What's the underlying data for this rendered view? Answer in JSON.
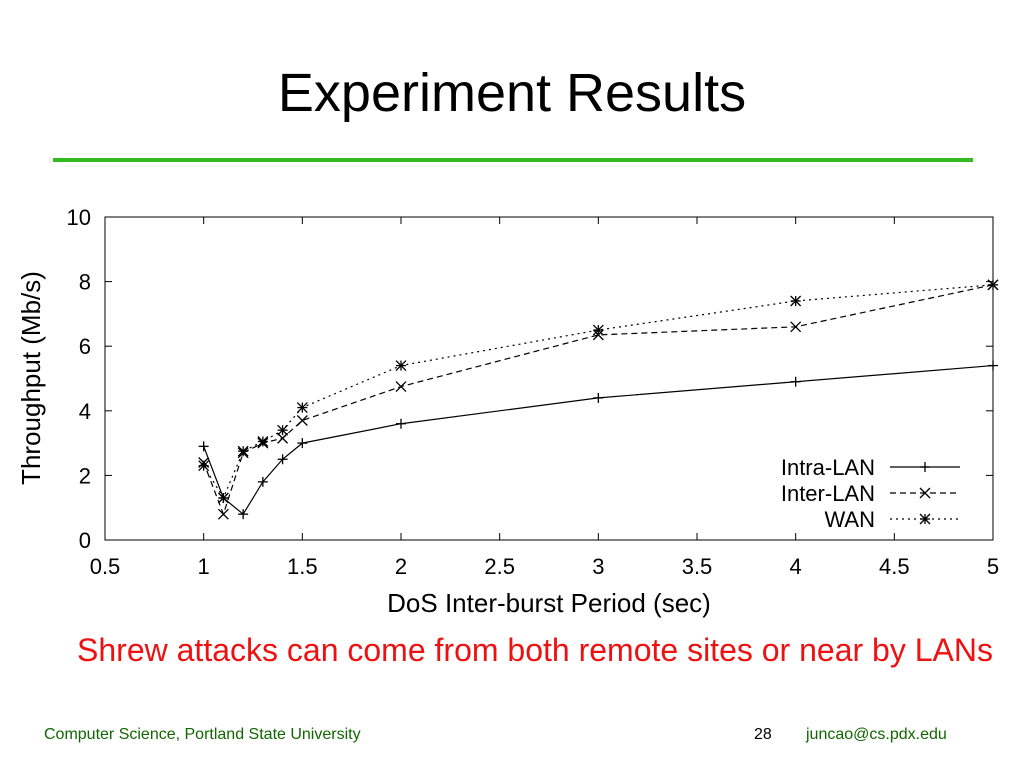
{
  "slide": {
    "title": "Experiment Results",
    "caption": "Shrew attacks can come from both remote sites or near by LANs",
    "footer_left": "Computer Science, Portland State University",
    "page_number": "28",
    "footer_email": "juncao@cs.pdx.edu",
    "accent_color": "#33bb22",
    "caption_color": "#ee1111"
  },
  "chart_data": {
    "type": "line",
    "title": "",
    "xlabel": "DoS Inter-burst Period (sec)",
    "ylabel": "Throughput (Mb/s)",
    "xlim": [
      0.5,
      5
    ],
    "ylim": [
      0,
      10
    ],
    "xticks": [
      0.5,
      1,
      1.5,
      2,
      2.5,
      3,
      3.5,
      4,
      4.5,
      5
    ],
    "xtick_labels": [
      "0.5",
      "1",
      "1.5",
      "2",
      "2.5",
      "3",
      "3.5",
      "4",
      "4.5",
      "5"
    ],
    "yticks": [
      0,
      2,
      4,
      6,
      8,
      10
    ],
    "ytick_labels": [
      "0",
      "2",
      "4",
      "6",
      "8",
      "10"
    ],
    "grid": false,
    "legend_position": "bottom-right",
    "series": [
      {
        "name": "Intra-LAN",
        "marker": "plus",
        "dash": "solid",
        "x": [
          1,
          1.1,
          1.2,
          1.3,
          1.4,
          1.5,
          2,
          3,
          4,
          5
        ],
        "y": [
          2.9,
          1.3,
          0.8,
          1.8,
          2.5,
          3.0,
          3.6,
          4.4,
          4.9,
          5.4
        ]
      },
      {
        "name": "Inter-LAN",
        "marker": "cross",
        "dash": "dashed",
        "x": [
          1,
          1.1,
          1.2,
          1.3,
          1.4,
          1.5,
          2,
          3,
          4,
          5
        ],
        "y": [
          2.4,
          0.8,
          2.7,
          3.0,
          3.15,
          3.7,
          4.75,
          6.35,
          6.6,
          7.9
        ]
      },
      {
        "name": "WAN",
        "marker": "star",
        "dash": "dotted",
        "x": [
          1,
          1.1,
          1.2,
          1.3,
          1.4,
          1.5,
          2,
          3,
          4,
          5
        ],
        "y": [
          2.3,
          1.3,
          2.75,
          3.05,
          3.4,
          4.1,
          5.4,
          6.5,
          7.4,
          7.9
        ]
      }
    ]
  }
}
